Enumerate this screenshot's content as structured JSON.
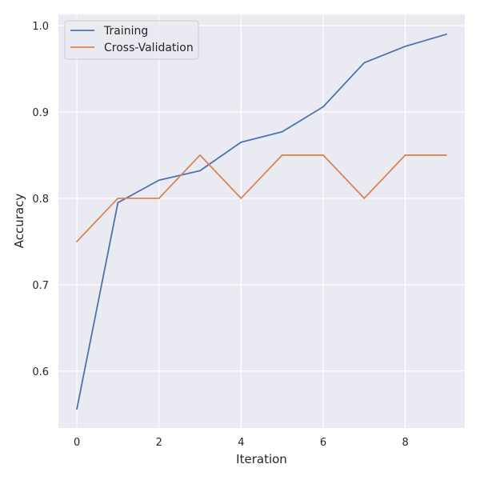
{
  "chart_data": {
    "type": "line",
    "xlabel": "Iteration",
    "ylabel": "Accuracy",
    "xlim": [
      -0.45,
      9.45
    ],
    "ylim": [
      0.534,
      1.013
    ],
    "x": [
      0,
      1,
      2,
      3,
      4,
      5,
      6,
      7,
      8,
      9
    ],
    "xticks": [
      0,
      2,
      4,
      6,
      8
    ],
    "yticks": [
      0.6,
      0.7,
      0.8,
      0.9,
      1.0
    ],
    "xtick_labels": [
      "0",
      "2",
      "4",
      "6",
      "8"
    ],
    "ytick_labels": [
      "0.6",
      "0.7",
      "0.8",
      "0.9",
      "1.0"
    ],
    "grid": true,
    "legend_position": "top-left",
    "series": [
      {
        "name": "Training",
        "color": "#4c72b0",
        "values": [
          0.556,
          0.795,
          0.821,
          0.832,
          0.865,
          0.877,
          0.906,
          0.957,
          0.976,
          0.99
        ]
      },
      {
        "name": "Cross-Validation",
        "color": "#dd8452",
        "values": [
          0.75,
          0.8,
          0.8,
          0.85,
          0.8,
          0.85,
          0.85,
          0.8,
          0.85,
          0.85
        ]
      }
    ]
  },
  "colors": {
    "plot_background": "#eaeaf2",
    "grid": "#ffffff"
  }
}
